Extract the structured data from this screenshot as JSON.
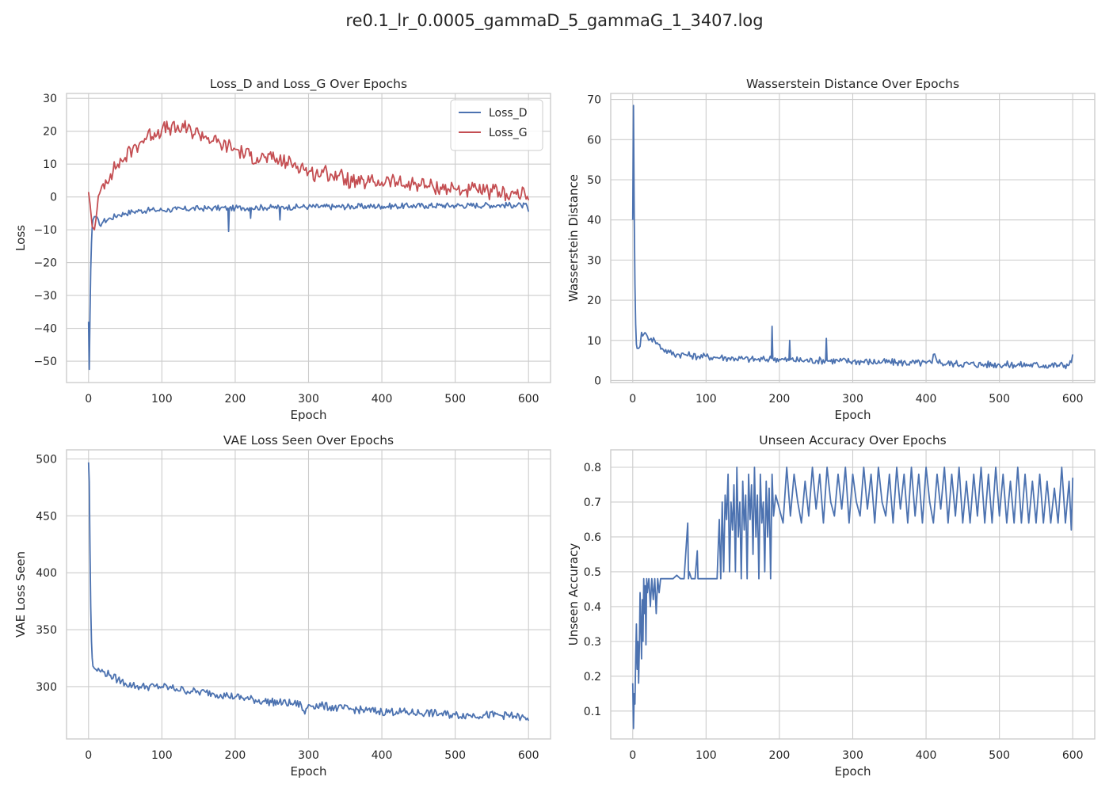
{
  "figure": {
    "title": "re0.1_lr_0.0005_gammaD_5_gammaG_1_3407.log"
  },
  "colors": {
    "blue": "#4c72b0",
    "red": "#c44e52",
    "grid": "#cccccc",
    "frame": "#cccccc"
  },
  "chart_data": [
    {
      "type": "line",
      "title": "Loss_D and Loss_G Over Epochs",
      "xlabel": "Epoch",
      "ylabel": "Loss",
      "xlim": [
        -30,
        630
      ],
      "ylim": [
        -56.5,
        31.5
      ],
      "xticks": [
        0,
        100,
        200,
        300,
        400,
        500,
        600
      ],
      "yticks": [
        -50,
        -40,
        -30,
        -20,
        -10,
        0,
        10,
        20,
        30
      ],
      "grid": true,
      "legend": "top-right",
      "series": [
        {
          "name": "Loss_D",
          "color": "#4c72b0",
          "x": [
            0,
            1,
            2,
            3,
            4,
            5,
            6,
            8,
            10,
            15,
            20,
            30,
            40,
            50,
            60,
            70,
            80,
            90,
            100,
            110,
            120,
            130,
            140,
            150,
            160,
            170,
            180,
            190,
            191,
            192,
            200,
            210,
            220,
            221,
            222,
            230,
            240,
            250,
            260,
            261,
            262,
            270,
            280,
            290,
            300,
            320,
            340,
            360,
            380,
            400,
            420,
            440,
            460,
            480,
            500,
            520,
            540,
            560,
            580,
            590,
            598,
            600
          ],
          "y": [
            -38,
            -52.5,
            -36,
            -22,
            -14,
            -9,
            -7,
            -6,
            -6,
            -8.5,
            -7.5,
            -6.5,
            -5.5,
            -5,
            -4.5,
            -4.2,
            -4.1,
            -4,
            -4,
            -3.9,
            -3.8,
            -3.7,
            -3.6,
            -3.5,
            -3.5,
            -3.4,
            -3.4,
            -3.4,
            -10.5,
            -3.5,
            -3.4,
            -3.3,
            -3.3,
            -6.5,
            -3.3,
            -3.2,
            -3.2,
            -3.2,
            -3.2,
            -7,
            -3.2,
            -3.1,
            -3.1,
            -3,
            -3,
            -3,
            -3,
            -2.9,
            -2.9,
            -2.8,
            -2.8,
            -2.7,
            -2.7,
            -2.6,
            -2.6,
            -2.6,
            -2.5,
            -2.5,
            -2.5,
            -2.6,
            -2.8,
            -4.5
          ]
        },
        {
          "name": "Loss_G",
          "color": "#c44e52",
          "x": [
            0,
            2,
            5,
            8,
            10,
            15,
            20,
            30,
            40,
            50,
            60,
            70,
            80,
            90,
            100,
            110,
            120,
            130,
            140,
            150,
            160,
            170,
            180,
            190,
            200,
            210,
            220,
            230,
            240,
            250,
            260,
            270,
            280,
            290,
            300,
            310,
            320,
            330,
            340,
            350,
            360,
            370,
            380,
            390,
            400,
            410,
            420,
            430,
            440,
            450,
            460,
            470,
            480,
            490,
            500,
            510,
            520,
            530,
            540,
            550,
            560,
            570,
            580,
            590,
            595,
            600
          ],
          "y": [
            1.5,
            -2,
            -9,
            -10,
            -7,
            1,
            4,
            7,
            10,
            12,
            14.5,
            16.5,
            18.5,
            19.5,
            20.5,
            21,
            20.5,
            21,
            20,
            19.5,
            18.5,
            17,
            16,
            15.5,
            14.5,
            13.5,
            12.5,
            12,
            12,
            11.5,
            11,
            10.5,
            10,
            9.5,
            7.5,
            7,
            7.5,
            7,
            6.5,
            5.5,
            4.5,
            4,
            4.5,
            4.5,
            4.5,
            5,
            4.5,
            3.5,
            4,
            4,
            3.5,
            3,
            3,
            2.5,
            2.5,
            2,
            2,
            2,
            1.5,
            1.5,
            1.5,
            1,
            1,
            0.5,
            1,
            -1
          ]
        }
      ]
    },
    {
      "type": "line",
      "title": "Wasserstein Distance Over Epochs",
      "xlabel": "Epoch",
      "ylabel": "Wasserstein Distance",
      "xlim": [
        -30,
        630
      ],
      "ylim": [
        -0.5,
        71.5
      ],
      "xticks": [
        0,
        100,
        200,
        300,
        400,
        500,
        600
      ],
      "yticks": [
        0,
        10,
        20,
        30,
        40,
        50,
        60,
        70
      ],
      "grid": true,
      "series": [
        {
          "color": "#4c72b0",
          "x": [
            0,
            1,
            2,
            3,
            4,
            5,
            6,
            8,
            10,
            12,
            15,
            20,
            25,
            30,
            35,
            40,
            50,
            60,
            70,
            80,
            90,
            100,
            110,
            120,
            130,
            140,
            150,
            160,
            170,
            180,
            189,
            190,
            191,
            200,
            213,
            214,
            215,
            230,
            250,
            263,
            264,
            265,
            280,
            300,
            320,
            340,
            360,
            380,
            400,
            408,
            410,
            420,
            440,
            460,
            480,
            500,
            520,
            540,
            560,
            580,
            595,
            598,
            600
          ],
          "y": [
            40,
            68.5,
            42,
            24,
            14,
            9,
            8,
            8,
            8.5,
            12,
            11.5,
            11,
            10.5,
            10,
            9,
            8,
            7,
            6.5,
            6.5,
            6.2,
            6,
            6,
            5.8,
            5.8,
            5.6,
            5.5,
            5.4,
            5.3,
            5.2,
            5.2,
            5.5,
            13.5,
            5.6,
            5.3,
            5,
            10,
            5.2,
            5,
            5,
            5,
            10.5,
            5,
            4.9,
            4.8,
            4.7,
            4.6,
            4.5,
            4.4,
            4.3,
            4.3,
            6.5,
            4.3,
            4.2,
            4.1,
            4,
            4,
            3.9,
            3.9,
            3.8,
            3.8,
            3.9,
            4.5,
            6.5
          ]
        }
      ]
    },
    {
      "type": "line",
      "title": "VAE Loss Seen Over Epochs",
      "xlabel": "Epoch",
      "ylabel": "VAE Loss Seen",
      "xlim": [
        -30,
        630
      ],
      "ylim": [
        254,
        508
      ],
      "xticks": [
        0,
        100,
        200,
        300,
        400,
        500,
        600
      ],
      "yticks": [
        300,
        350,
        400,
        450,
        500
      ],
      "grid": true,
      "series": [
        {
          "color": "#4c72b0",
          "x": [
            0,
            1,
            2,
            3,
            4,
            5,
            6,
            8,
            10,
            15,
            20,
            30,
            40,
            50,
            60,
            70,
            80,
            90,
            100,
            110,
            120,
            130,
            140,
            150,
            160,
            170,
            180,
            190,
            200,
            220,
            240,
            260,
            280,
            290,
            295,
            300,
            320,
            340,
            360,
            380,
            400,
            420,
            440,
            460,
            480,
            500,
            520,
            540,
            560,
            580,
            590,
            600
          ],
          "y": [
            497,
            480,
            420,
            370,
            340,
            325,
            318,
            316,
            315,
            314,
            313,
            310,
            306,
            303,
            301,
            300,
            300,
            300,
            300,
            299,
            298,
            297,
            296,
            295,
            295,
            294,
            293,
            292,
            291,
            289,
            287,
            286,
            285,
            284,
            276,
            284,
            283,
            281,
            280,
            279,
            278,
            278,
            277,
            277,
            276,
            275,
            275,
            275,
            275,
            274,
            273,
            270
          ]
        }
      ]
    },
    {
      "type": "line",
      "title": "Unseen Accuracy Over Epochs",
      "xlabel": "Epoch",
      "ylabel": "Unseen Accuracy",
      "xlim": [
        -30,
        630
      ],
      "ylim": [
        0.02,
        0.85
      ],
      "xticks": [
        0,
        100,
        200,
        300,
        400,
        500,
        600
      ],
      "yticks": [
        0.1,
        0.2,
        0.3,
        0.4,
        0.5,
        0.6,
        0.7,
        0.8
      ],
      "grid": true,
      "series": [
        {
          "color": "#4c72b0",
          "x": [
            0,
            1,
            2,
            3,
            4,
            5,
            6,
            7,
            8,
            9,
            10,
            11,
            12,
            13,
            14,
            15,
            16,
            17,
            18,
            19,
            20,
            22,
            24,
            26,
            28,
            30,
            32,
            34,
            36,
            38,
            40,
            45,
            50,
            55,
            60,
            65,
            70,
            75,
            76,
            77,
            80,
            85,
            88,
            89,
            90,
            95,
            100,
            105,
            110,
            115,
            118,
            120,
            122,
            124,
            126,
            128,
            130,
            132,
            134,
            136,
            138,
            140,
            142,
            144,
            146,
            148,
            150,
            152,
            154,
            156,
            158,
            160,
            162,
            164,
            166,
            168,
            170,
            172,
            174,
            176,
            178,
            180,
            182,
            184,
            186,
            188,
            190,
            192,
            195,
            200,
            205,
            210,
            215,
            220,
            225,
            230,
            235,
            240,
            245,
            250,
            255,
            260,
            265,
            270,
            275,
            280,
            285,
            290,
            295,
            300,
            305,
            310,
            315,
            320,
            325,
            330,
            335,
            340,
            345,
            350,
            355,
            360,
            365,
            370,
            375,
            380,
            385,
            390,
            395,
            400,
            405,
            410,
            415,
            420,
            425,
            430,
            435,
            440,
            445,
            450,
            455,
            460,
            465,
            470,
            475,
            480,
            485,
            490,
            495,
            500,
            505,
            510,
            515,
            520,
            525,
            530,
            535,
            540,
            545,
            550,
            555,
            560,
            565,
            570,
            575,
            580,
            585,
            590,
            595,
            598,
            600
          ],
          "y": [
            0.18,
            0.05,
            0.15,
            0.12,
            0.25,
            0.35,
            0.22,
            0.3,
            0.18,
            0.28,
            0.44,
            0.35,
            0.25,
            0.42,
            0.3,
            0.48,
            0.38,
            0.46,
            0.29,
            0.48,
            0.44,
            0.48,
            0.4,
            0.48,
            0.42,
            0.48,
            0.38,
            0.48,
            0.44,
            0.48,
            0.48,
            0.48,
            0.48,
            0.48,
            0.49,
            0.48,
            0.48,
            0.64,
            0.48,
            0.5,
            0.48,
            0.48,
            0.56,
            0.48,
            0.48,
            0.48,
            0.48,
            0.48,
            0.48,
            0.48,
            0.65,
            0.48,
            0.7,
            0.5,
            0.72,
            0.65,
            0.78,
            0.5,
            0.7,
            0.62,
            0.75,
            0.5,
            0.8,
            0.6,
            0.7,
            0.48,
            0.76,
            0.62,
            0.72,
            0.48,
            0.78,
            0.65,
            0.75,
            0.55,
            0.8,
            0.6,
            0.72,
            0.48,
            0.78,
            0.64,
            0.7,
            0.5,
            0.76,
            0.6,
            0.74,
            0.48,
            0.78,
            0.66,
            0.72,
            0.68,
            0.64,
            0.8,
            0.66,
            0.78,
            0.7,
            0.64,
            0.76,
            0.66,
            0.8,
            0.68,
            0.78,
            0.64,
            0.8,
            0.7,
            0.66,
            0.78,
            0.68,
            0.8,
            0.64,
            0.78,
            0.7,
            0.66,
            0.8,
            0.68,
            0.78,
            0.64,
            0.8,
            0.7,
            0.66,
            0.78,
            0.64,
            0.8,
            0.68,
            0.78,
            0.64,
            0.8,
            0.66,
            0.78,
            0.64,
            0.8,
            0.7,
            0.64,
            0.78,
            0.68,
            0.8,
            0.64,
            0.78,
            0.66,
            0.8,
            0.64,
            0.76,
            0.64,
            0.78,
            0.66,
            0.8,
            0.64,
            0.78,
            0.64,
            0.8,
            0.66,
            0.78,
            0.64,
            0.76,
            0.64,
            0.8,
            0.64,
            0.78,
            0.64,
            0.76,
            0.64,
            0.78,
            0.64,
            0.76,
            0.64,
            0.74,
            0.64,
            0.8,
            0.64,
            0.76,
            0.62,
            0.77
          ]
        }
      ]
    }
  ]
}
